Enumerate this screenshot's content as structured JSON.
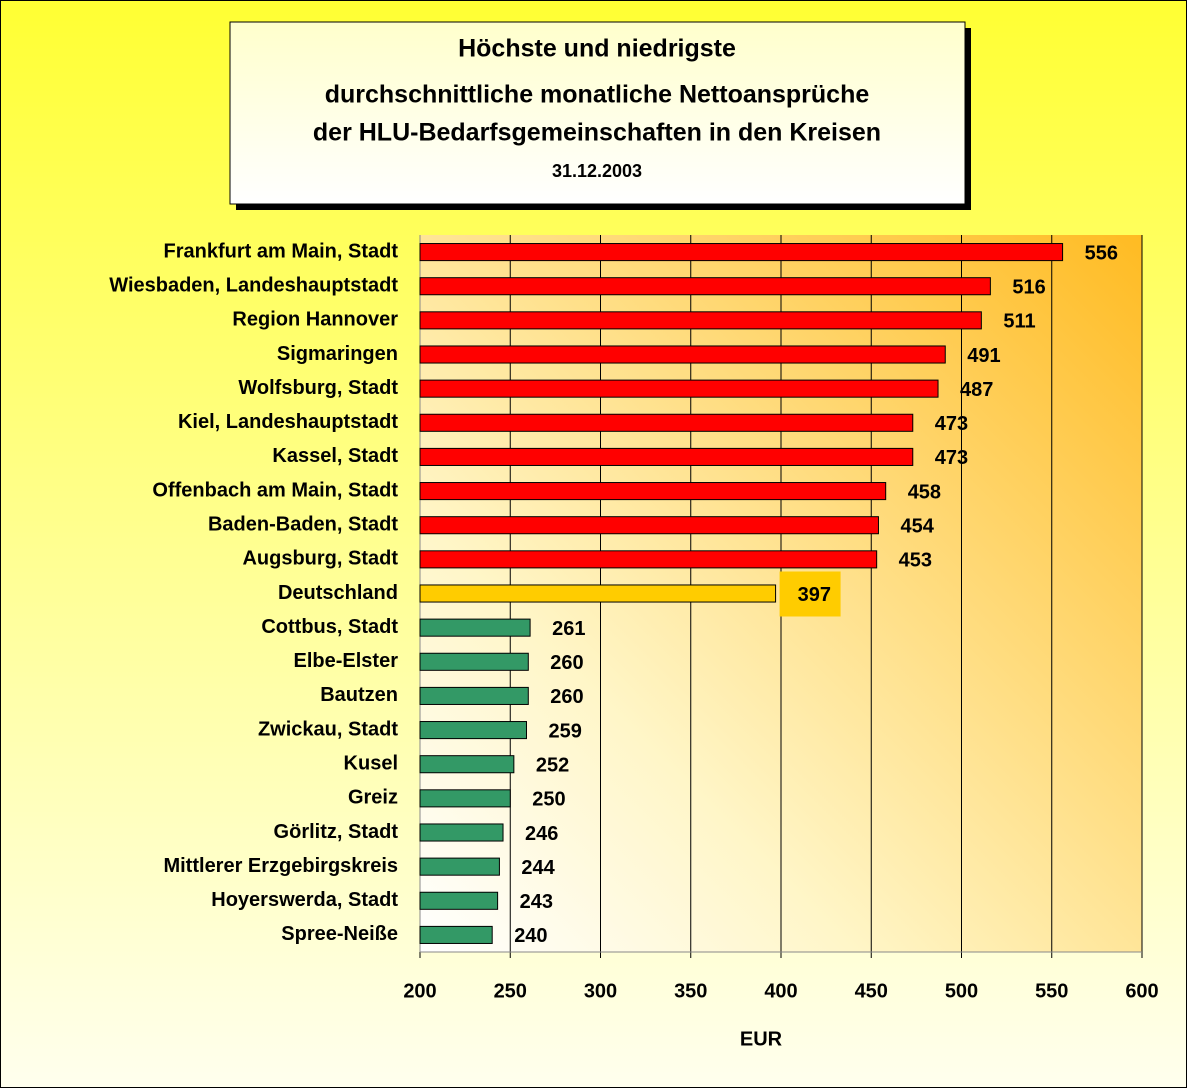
{
  "chart_data": {
    "type": "bar",
    "orientation": "horizontal",
    "title": [
      "Höchste und niedrigste",
      "durchschnittliche monatliche Nettoansprüche",
      "der HLU-Bedarfsgemeinschaften in den Kreisen"
    ],
    "subtitle": "31.12.2003",
    "x_label": "EUR",
    "categories": [
      "Frankfurt am Main, Stadt",
      "Wiesbaden, Landeshauptstadt",
      "Region Hannover",
      "Sigmaringen",
      "Wolfsburg, Stadt",
      "Kiel, Landeshauptstadt",
      "Kassel, Stadt",
      "Offenbach am Main, Stadt",
      "Baden-Baden, Stadt",
      "Augsburg, Stadt",
      "Deutschland",
      "Cottbus, Stadt",
      "Elbe-Elster",
      "Bautzen",
      "Zwickau, Stadt",
      "Kusel",
      "Greiz",
      "Görlitz, Stadt",
      "Mittlerer Erzgebirgskreis",
      "Hoyerswerda, Stadt",
      "Spree-Neiße"
    ],
    "values": [
      556,
      516,
      511,
      491,
      487,
      473,
      473,
      458,
      454,
      453,
      397,
      261,
      260,
      260,
      259,
      252,
      250,
      246,
      244,
      243,
      240
    ],
    "colors": [
      "#ff0000",
      "#ff0000",
      "#ff0000",
      "#ff0000",
      "#ff0000",
      "#ff0000",
      "#ff0000",
      "#ff0000",
      "#ff0000",
      "#ff0000",
      "#ffcc00",
      "#339966",
      "#339966",
      "#339966",
      "#339966",
      "#339966",
      "#339966",
      "#339966",
      "#339966",
      "#339966",
      "#339966"
    ],
    "xlim": [
      200,
      600
    ],
    "xticks": [
      200,
      250,
      300,
      350,
      400,
      450,
      500,
      550,
      600
    ],
    "grid": true
  }
}
